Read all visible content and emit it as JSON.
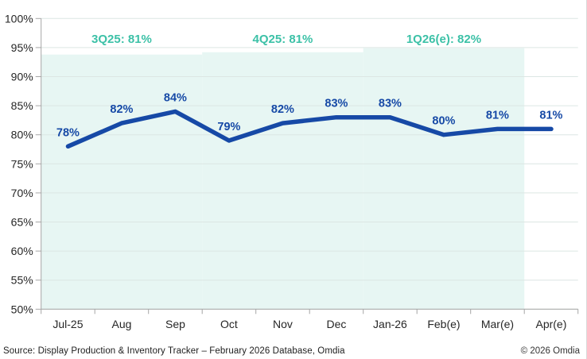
{
  "chart_data": {
    "type": "line",
    "title": "",
    "xlabel": "",
    "ylabel": "",
    "categories": [
      "Jul-25",
      "Aug",
      "Sep",
      "Oct",
      "Nov",
      "Dec",
      "Jan-26",
      "Feb(e)",
      "Mar(e)",
      "Apr(e)"
    ],
    "values": [
      78,
      82,
      84,
      79,
      82,
      83,
      83,
      80,
      81,
      81
    ],
    "data_labels": [
      "78%",
      "82%",
      "84%",
      "79%",
      "82%",
      "83%",
      "83%",
      "80%",
      "81%",
      "81%"
    ],
    "unit": "%",
    "ylim": [
      50,
      100
    ],
    "ytick_step": 5,
    "ytick_labels": [
      "100%",
      "95%",
      "90%",
      "85%",
      "80%",
      "75%",
      "70%",
      "65%",
      "60%",
      "55%",
      "50%"
    ],
    "grid": true,
    "legend": false,
    "annotations": [
      {
        "text": "3Q25: 81%",
        "at_category": "Aug"
      },
      {
        "text": "4Q25: 81%",
        "at_category": "Nov"
      },
      {
        "text": "1Q26(e): 82%",
        "at_category": "Feb(e)"
      }
    ],
    "quarter_bands": [
      {
        "from": "Jul-25",
        "to": "Sep",
        "top_pct": 93.8
      },
      {
        "from": "Oct",
        "to": "Dec",
        "top_pct": 94.2
      },
      {
        "from": "Jan-26",
        "to": "Mar(e)",
        "top_pct": 94.9
      }
    ]
  },
  "colors": {
    "line": "#1649a6",
    "data_label": "#1649a6",
    "annotation": "#3cc1a7",
    "band": "#e7f6f3",
    "grid": "#dce6e3",
    "axis": "#a6a6a6",
    "axis_text": "#262626"
  },
  "footer": {
    "source": "Source: Display Production & Inventory Tracker – February 2026 Database, Omdia",
    "copyright": "© 2026 Omdia"
  }
}
